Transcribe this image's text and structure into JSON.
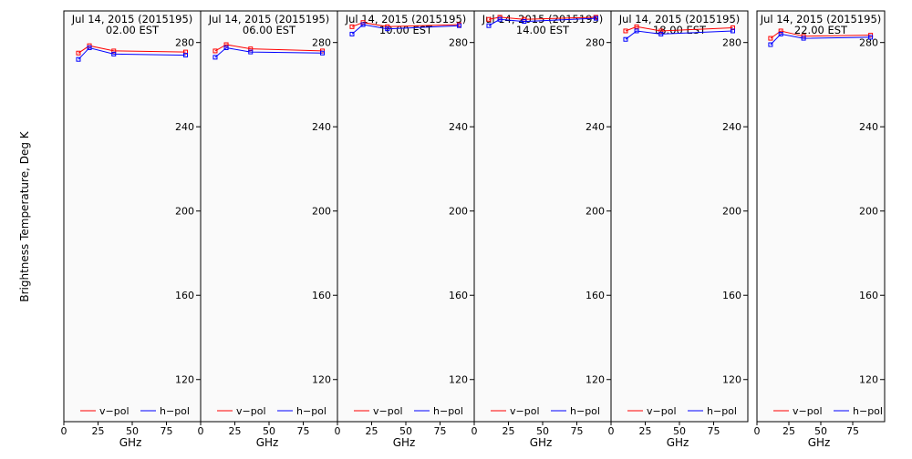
{
  "y_axis_label": "Brightness Temperature, Deg K",
  "legend": {
    "v_label": "v−pol",
    "h_label": "h−pol"
  },
  "colors": {
    "v": "#ff0000",
    "h": "#0000ff",
    "panel_bg": "#fafafa",
    "axis": "#000000"
  },
  "chart_data": [
    {
      "type": "line",
      "title": "Jul 14, 2015 (2015195)",
      "subtitle": "02.00 EST",
      "xlabel": "GHz",
      "ylabel": "Brightness Temperature, Deg K",
      "x": [
        10.65,
        18.7,
        36.5,
        89
      ],
      "xlim": [
        0,
        100
      ],
      "xticks": [
        0,
        25,
        50,
        75
      ],
      "ylim": [
        100,
        295
      ],
      "yticks": [
        120,
        160,
        200,
        240,
        280
      ],
      "series": [
        {
          "name": "v−pol",
          "values": [
            275,
            278.5,
            276,
            275.5
          ]
        },
        {
          "name": "h−pol",
          "values": [
            272,
            277.5,
            274.5,
            274
          ]
        }
      ]
    },
    {
      "type": "line",
      "title": "Jul 14, 2015 (2015195)",
      "subtitle": "06.00 EST",
      "xlabel": "GHz",
      "ylabel": "Brightness Temperature, Deg K",
      "x": [
        10.65,
        18.7,
        36.5,
        89
      ],
      "xlim": [
        0,
        100
      ],
      "xticks": [
        0,
        25,
        50,
        75
      ],
      "ylim": [
        100,
        295
      ],
      "yticks": [
        120,
        160,
        200,
        240,
        280
      ],
      "series": [
        {
          "name": "v−pol",
          "values": [
            276,
            279,
            277,
            276
          ]
        },
        {
          "name": "h−pol",
          "values": [
            273,
            277.5,
            275.5,
            275
          ]
        }
      ]
    },
    {
      "type": "line",
      "title": "Jul 14, 2015 (2015195)",
      "subtitle": "10.00 EST",
      "xlabel": "GHz",
      "ylabel": "Brightness Temperature, Deg K",
      "x": [
        10.65,
        18.7,
        36.5,
        89
      ],
      "xlim": [
        0,
        100
      ],
      "xticks": [
        0,
        25,
        50,
        75
      ],
      "ylim": [
        100,
        295
      ],
      "yticks": [
        120,
        160,
        200,
        240,
        280
      ],
      "series": [
        {
          "name": "v−pol",
          "values": [
            287.5,
            289.5,
            287.5,
            288.5
          ]
        },
        {
          "name": "h−pol",
          "values": [
            284,
            288.5,
            286.5,
            288
          ]
        }
      ]
    },
    {
      "type": "line",
      "title": "Jul 14, 2015 (2015195)",
      "subtitle": "14.00 EST",
      "xlabel": "GHz",
      "ylabel": "Brightness Temperature, Deg K",
      "x": [
        10.65,
        18.7,
        36.5,
        89
      ],
      "xlim": [
        0,
        100
      ],
      "xticks": [
        0,
        25,
        50,
        75
      ],
      "ylim": [
        100,
        295
      ],
      "yticks": [
        120,
        160,
        200,
        240,
        280
      ],
      "series": [
        {
          "name": "v−pol",
          "values": [
            291,
            292,
            291,
            292
          ]
        },
        {
          "name": "h−pol",
          "values": [
            288,
            291,
            290,
            291.5
          ]
        }
      ]
    },
    {
      "type": "line",
      "title": "Jul 14, 2015 (2015195)",
      "subtitle": "18.00 EST",
      "xlabel": "GHz",
      "ylabel": "Brightness Temperature, Deg K",
      "x": [
        10.65,
        18.7,
        36.5,
        89
      ],
      "xlim": [
        0,
        100
      ],
      "xticks": [
        0,
        25,
        50,
        75
      ],
      "ylim": [
        100,
        295
      ],
      "yticks": [
        120,
        160,
        200,
        240,
        280
      ],
      "series": [
        {
          "name": "v−pol",
          "values": [
            285.5,
            287.5,
            285.5,
            287
          ]
        },
        {
          "name": "h−pol",
          "values": [
            281.5,
            285.5,
            284,
            285.5
          ]
        }
      ]
    },
    {
      "type": "line",
      "title": "Jul 14, 2015 (2015195)",
      "subtitle": "22.00 EST",
      "xlabel": "GHz",
      "ylabel": "Brightness Temperature, Deg K",
      "x": [
        10.65,
        18.7,
        36.5,
        89
      ],
      "xlim": [
        0,
        100
      ],
      "xticks": [
        0,
        25,
        50,
        75
      ],
      "ylim": [
        100,
        295
      ],
      "yticks": [
        120,
        160,
        200,
        240,
        280
      ],
      "series": [
        {
          "name": "v−pol",
          "values": [
            282,
            285.5,
            283,
            283.5
          ]
        },
        {
          "name": "h−pol",
          "values": [
            279,
            284,
            282,
            282.5
          ]
        }
      ]
    }
  ]
}
